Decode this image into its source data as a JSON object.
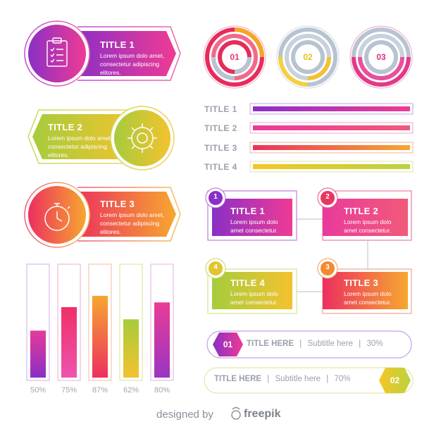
{
  "left_cards": [
    {
      "title": "TITLE 1",
      "body": "Lorem ipsum dolo amet, consectetur adipiscing elitores.",
      "icon": "clipboard-icon"
    },
    {
      "title": "TITLE 2",
      "body": "Lorem ipsum dolo amet, consectetur adipiscing elitores.",
      "icon": "gear-icon"
    },
    {
      "title": "TITLE 3",
      "body": "Lorem ipsum dolo amet, consectetur adipiscing elitores.",
      "icon": "stopwatch-icon"
    }
  ],
  "rings": [
    {
      "label": "01",
      "text_color": "#e23b6b"
    },
    {
      "label": "02",
      "text_color": "#e3c21a"
    },
    {
      "label": "03",
      "text_color": "#dd2f7f"
    }
  ],
  "progress_rows": [
    {
      "label": "TITLE 1",
      "fill": 0.97
    },
    {
      "label": "TITLE 2",
      "fill": 0.97
    },
    {
      "label": "TITLE 3",
      "fill": 0.97
    },
    {
      "label": "TITLE 4",
      "fill": 0.97
    }
  ],
  "flow_boxes": [
    {
      "number": "1",
      "title": "TITLE 1",
      "body": "Lorem ipsum dolo amet consectetur."
    },
    {
      "number": "2",
      "title": "TITLE 2",
      "body": "Lorem ipsum dolo amet consectetur."
    },
    {
      "number": "3",
      "title": "TITLE 3",
      "body": "Lorem ipsum dolo amet consectetur."
    },
    {
      "number": "4",
      "title": "TITLE 4",
      "body": "Lorem ipsum dolo amet consectetur."
    }
  ],
  "chart_data": {
    "type": "bar",
    "categories": [
      "50%",
      "75%",
      "87%",
      "62%",
      "80%"
    ],
    "values": [
      50,
      75,
      87,
      62,
      80
    ],
    "ylim": [
      0,
      100
    ]
  },
  "pills": [
    {
      "badge": "01",
      "title": "TITLE HERE",
      "sep1": "|",
      "subtitle": "Subtitle here",
      "sep2": "|",
      "percent": "30%"
    },
    {
      "badge": "02",
      "title": "TITLE HERE",
      "sep1": "|",
      "subtitle": "Subtitle here",
      "sep2": "|",
      "percent": "70%"
    }
  ],
  "footer": {
    "designed_by": "designed by",
    "brand": "freepik"
  }
}
